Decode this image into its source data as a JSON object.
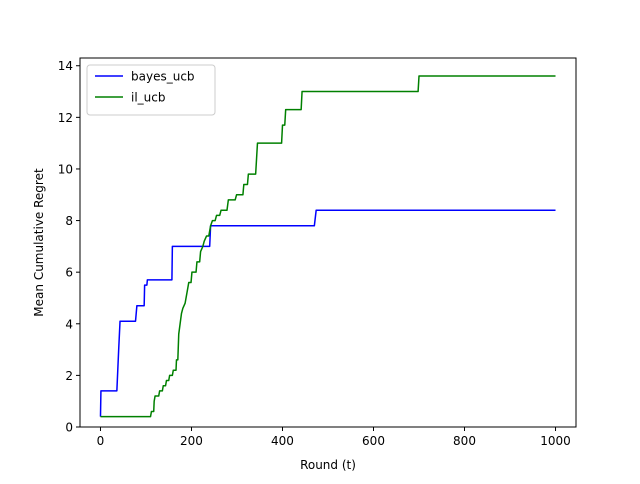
{
  "chart_data": {
    "type": "line",
    "xlabel": "Round (t)",
    "ylabel": "Mean Cumulative Regret",
    "xlim": [
      -45,
      1045
    ],
    "ylim": [
      0,
      14.3
    ],
    "xticks": [
      0,
      200,
      400,
      600,
      800,
      1000
    ],
    "yticks": [
      0,
      2,
      4,
      6,
      8,
      10,
      12,
      14
    ],
    "grid": false,
    "legend_position": "top-left",
    "series": [
      {
        "name": "bayes_ucb",
        "color": "#0000ff",
        "points": [
          [
            0,
            0.4
          ],
          [
            1,
            1.4
          ],
          [
            36,
            1.4
          ],
          [
            38,
            2.2
          ],
          [
            40,
            3.0
          ],
          [
            43,
            4.1
          ],
          [
            77,
            4.1
          ],
          [
            80,
            4.7
          ],
          [
            96,
            4.7
          ],
          [
            97,
            5.5
          ],
          [
            102,
            5.5
          ],
          [
            103,
            5.7
          ],
          [
            157,
            5.7
          ],
          [
            158,
            7.0
          ],
          [
            240,
            7.0
          ],
          [
            242,
            7.8
          ],
          [
            470,
            7.8
          ],
          [
            474,
            8.4
          ],
          [
            1000,
            8.4
          ]
        ]
      },
      {
        "name": "il_ucb",
        "color": "#008000",
        "points": [
          [
            0,
            0.4
          ],
          [
            110,
            0.4
          ],
          [
            112,
            0.6
          ],
          [
            117,
            0.6
          ],
          [
            118,
            1.0
          ],
          [
            120,
            1.2
          ],
          [
            128,
            1.2
          ],
          [
            130,
            1.4
          ],
          [
            136,
            1.4
          ],
          [
            138,
            1.6
          ],
          [
            143,
            1.6
          ],
          [
            145,
            1.8
          ],
          [
            150,
            1.8
          ],
          [
            152,
            2.0
          ],
          [
            158,
            2.0
          ],
          [
            160,
            2.2
          ],
          [
            166,
            2.2
          ],
          [
            167,
            2.6
          ],
          [
            170,
            2.6
          ],
          [
            172,
            3.6
          ],
          [
            175,
            4.0
          ],
          [
            178,
            4.4
          ],
          [
            181,
            4.6
          ],
          [
            186,
            4.8
          ],
          [
            190,
            5.2
          ],
          [
            194,
            5.6
          ],
          [
            199,
            5.6
          ],
          [
            201,
            6.0
          ],
          [
            210,
            6.0
          ],
          [
            212,
            6.4
          ],
          [
            218,
            6.4
          ],
          [
            220,
            6.8
          ],
          [
            225,
            7.0
          ],
          [
            228,
            7.2
          ],
          [
            233,
            7.4
          ],
          [
            238,
            7.4
          ],
          [
            242,
            7.8
          ],
          [
            246,
            8.0
          ],
          [
            252,
            8.0
          ],
          [
            255,
            8.2
          ],
          [
            262,
            8.2
          ],
          [
            265,
            8.4
          ],
          [
            278,
            8.4
          ],
          [
            281,
            8.8
          ],
          [
            296,
            8.8
          ],
          [
            299,
            9.0
          ],
          [
            313,
            9.0
          ],
          [
            315,
            9.4
          ],
          [
            323,
            9.4
          ],
          [
            325,
            9.8
          ],
          [
            341,
            9.8
          ],
          [
            343,
            10.4
          ],
          [
            345,
            11.0
          ],
          [
            398,
            11.0
          ],
          [
            400,
            11.7
          ],
          [
            405,
            11.7
          ],
          [
            407,
            12.3
          ],
          [
            441,
            12.3
          ],
          [
            443,
            13.0
          ],
          [
            698,
            13.0
          ],
          [
            700,
            13.6
          ],
          [
            1000,
            13.6
          ]
        ]
      }
    ]
  }
}
